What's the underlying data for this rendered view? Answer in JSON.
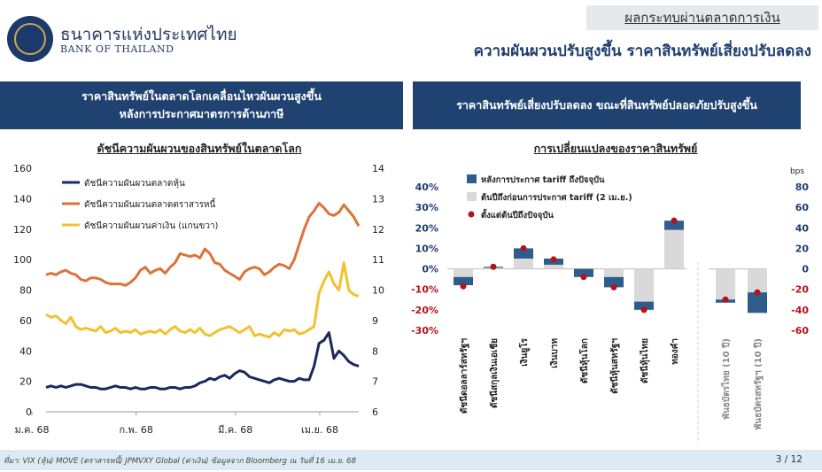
{
  "header": {
    "bank_name_th": "ธนาคารแห่งประเทศไทย",
    "bank_name_en": "BANK OF THAILAND",
    "section_tag": "ผลกระทบผ่านตลาดการเงิน",
    "title": "ความผันผวนปรับสูงขึ้น ราคาสินทรัพย์เสี่ยงปรับลดลง"
  },
  "left_panel": {
    "heading_line1": "ราคาสินทรัพย์ในตลาดโลกเคลื่อนไหวผันผวนสูงขึ้น",
    "heading_line2": "หลังการประกาศมาตรการด้านภาษี"
  },
  "right_panel": {
    "heading": "ราคาสินทรัพย์เสี่ยงปรับลดลง ขณะที่สินทรัพย์ปลอดภัยปรับสูงขึ้น"
  },
  "footer": {
    "source": "ที่มา: VIX (หุ้น) MOVE (ตราสารหนี้) JPMVXY Global (ค่าเงิน) ข้อมูลจาก Bloomberg ณ วันที่ 16 เม.ย. 68",
    "page": "3 / 12"
  },
  "chart_data": [
    {
      "type": "line",
      "title": "ดัชนีความผันผวนของสินทรัพย์ในตลาดโลก",
      "x_ticks": [
        "ม.ค. 68",
        "ก.พ. 68",
        "มี.ค. 68",
        "เม.ย. 68"
      ],
      "y_left_ticks": [
        0,
        20,
        40,
        60,
        80,
        100,
        120,
        140,
        160
      ],
      "y_right_ticks": [
        6,
        7,
        8,
        9,
        10,
        11,
        12,
        13,
        14
      ],
      "ylim_left": [
        0,
        160
      ],
      "ylim_right": [
        6,
        14
      ],
      "legend_position": "top-left",
      "series": [
        {
          "name": "ดัชนีความผันผวนตลาดหุ้น",
          "color": "#1b2a5c",
          "axis": "left",
          "values": [
            16,
            17,
            16,
            17,
            16,
            17,
            18,
            18,
            17,
            16,
            16,
            15,
            15,
            16,
            17,
            16,
            16,
            15,
            16,
            15,
            15,
            16,
            16,
            15,
            15,
            16,
            16,
            15,
            16,
            16,
            17,
            19,
            20,
            22,
            21,
            23,
            24,
            22,
            25,
            27,
            26,
            23,
            22,
            21,
            20,
            19,
            21,
            22,
            21,
            20,
            20,
            22,
            21,
            21,
            30,
            45,
            47,
            52,
            35,
            40,
            37,
            33,
            31,
            30
          ]
        },
        {
          "name": "ดัชนีความผันผวนตลาดตราสารหนี้",
          "color": "#d9743a",
          "axis": "left",
          "values": [
            90,
            91,
            90,
            92,
            93,
            91,
            90,
            87,
            86,
            88,
            88,
            87,
            85,
            84,
            84,
            84,
            83,
            85,
            88,
            93,
            95,
            91,
            93,
            94,
            91,
            95,
            98,
            104,
            103,
            102,
            103,
            101,
            107,
            104,
            98,
            97,
            93,
            91,
            89,
            87,
            92,
            94,
            95,
            94,
            90,
            92,
            95,
            97,
            96,
            94,
            100,
            110,
            120,
            128,
            132,
            137,
            134,
            130,
            129,
            131,
            136,
            132,
            128,
            122
          ]
        },
        {
          "name": "ดัชนีความผันผวนค่าเงิน (แกนขวา)",
          "color": "#f2c12e",
          "axis": "right",
          "values": [
            9.2,
            9.1,
            9.15,
            9.0,
            8.9,
            9.1,
            8.8,
            8.7,
            8.75,
            8.7,
            8.65,
            8.8,
            8.6,
            8.65,
            8.75,
            8.6,
            8.65,
            8.6,
            8.7,
            8.55,
            8.6,
            8.65,
            8.6,
            8.7,
            8.55,
            8.7,
            8.8,
            8.65,
            8.6,
            8.7,
            8.6,
            8.75,
            8.55,
            8.5,
            8.6,
            8.7,
            8.75,
            8.8,
            8.7,
            8.6,
            8.7,
            8.8,
            8.5,
            8.55,
            8.5,
            8.45,
            8.6,
            8.5,
            8.7,
            8.65,
            8.7,
            8.55,
            8.6,
            8.7,
            8.8,
            9.9,
            10.3,
            10.6,
            10.2,
            10.0,
            10.9,
            10.0,
            9.85,
            9.8
          ]
        }
      ]
    },
    {
      "type": "bar",
      "title": "การเปลี่ยนแปลงของราคาสินทรัพย์",
      "ylim_left": [
        -30,
        40
      ],
      "y_left_ticks": [
        "40%",
        "30%",
        "20%",
        "10%",
        "0%",
        "-10%",
        "-20%",
        "-30%"
      ],
      "y_right_unit": "bps",
      "ylim_right": [
        -60,
        80
      ],
      "y_right_ticks": [
        80,
        60,
        40,
        20,
        0,
        -20,
        -40,
        -60
      ],
      "legend_position": "top-left",
      "legend": [
        {
          "name": "หลังการประกาศ tariff ถึงปัจจุบัน",
          "color": "#2e5d8c"
        },
        {
          "name": "ต้นปีถึงก่อนการประกาศ tariff (2 เม.ย.)",
          "color": "#d9d9d9"
        },
        {
          "name": "ตั้งแต่ต้นปีถึงปัจจุบัน",
          "color": "#b5121b"
        }
      ],
      "categories": [
        "ดัชนีดอลลาร์สหรัฐฯ",
        "ดัชนีสกุลเงินเอเชีย",
        "เงินยูโร",
        "เงินบาท",
        "ดัชนีหุ้นโลก",
        "ดัชนีหุ้นสหรัฐฯ",
        "ดัชนีหุ้นไทย",
        "ทองคำ"
      ],
      "bond_categories": [
        "พันธบัตรไทย (10 ปี)",
        "พันธบัตรสหรัฐฯ (10 ปี)"
      ],
      "pct_series": {
        "after_tariff": [
          -4,
          0.5,
          5,
          3,
          -4,
          -5,
          -4,
          4.5
        ],
        "before_tariff": [
          -4,
          0.5,
          5,
          2,
          0,
          -4,
          -16,
          19
        ],
        "ytd": [
          -8.5,
          1,
          10,
          4.6,
          -4,
          -9,
          -20,
          23.5
        ]
      },
      "bond_series": {
        "after_tariff": [
          3,
          20
        ],
        "before_tariff": [
          -33,
          -43
        ],
        "ytd": [
          -30,
          -23
        ]
      }
    }
  ]
}
